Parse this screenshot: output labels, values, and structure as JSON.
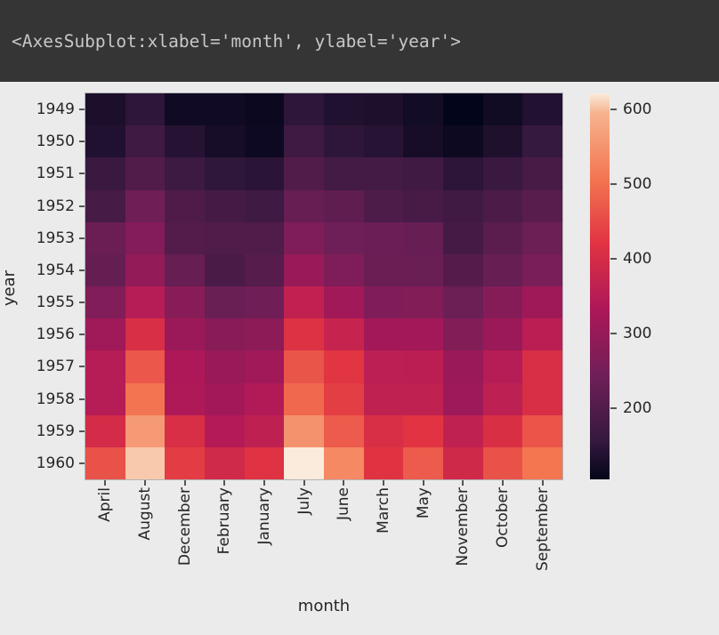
{
  "header": {
    "title": "<AxesSubplot:xlabel='month', ylabel='year'>"
  },
  "chart_data": {
    "type": "heatmap",
    "xlabel": "month",
    "ylabel": "year",
    "columns": [
      "April",
      "August",
      "December",
      "February",
      "January",
      "July",
      "June",
      "March",
      "May",
      "November",
      "October",
      "September"
    ],
    "rows": [
      "1949",
      "1950",
      "1951",
      "1952",
      "1953",
      "1954",
      "1955",
      "1956",
      "1957",
      "1958",
      "1959",
      "1960"
    ],
    "values": [
      [
        129,
        148,
        118,
        118,
        112,
        148,
        135,
        132,
        121,
        104,
        119,
        136
      ],
      [
        135,
        170,
        140,
        126,
        115,
        170,
        149,
        141,
        125,
        114,
        133,
        158
      ],
      [
        163,
        199,
        166,
        150,
        145,
        199,
        178,
        178,
        172,
        146,
        162,
        184
      ],
      [
        181,
        242,
        194,
        180,
        171,
        230,
        218,
        193,
        183,
        172,
        191,
        209
      ],
      [
        235,
        272,
        201,
        196,
        196,
        264,
        243,
        236,
        229,
        180,
        211,
        237
      ],
      [
        227,
        293,
        229,
        188,
        204,
        302,
        264,
        235,
        234,
        203,
        229,
        259
      ],
      [
        269,
        347,
        278,
        233,
        242,
        364,
        315,
        267,
        270,
        237,
        274,
        312
      ],
      [
        313,
        405,
        306,
        277,
        284,
        413,
        374,
        317,
        318,
        271,
        306,
        355
      ],
      [
        348,
        467,
        336,
        301,
        315,
        465,
        422,
        356,
        355,
        305,
        347,
        404
      ],
      [
        348,
        505,
        337,
        318,
        340,
        491,
        435,
        362,
        363,
        310,
        359,
        404
      ],
      [
        396,
        559,
        405,
        342,
        360,
        548,
        472,
        406,
        420,
        362,
        407,
        463
      ],
      [
        461,
        606,
        432,
        391,
        417,
        622,
        535,
        419,
        472,
        390,
        461,
        508
      ]
    ],
    "vmin": 104,
    "vmax": 622,
    "colormap": "rocket",
    "colormap_stops": [
      {
        "t": 0.0,
        "color": "#03051A"
      },
      {
        "t": 0.1,
        "color": "#35193E"
      },
      {
        "t": 0.27,
        "color": "#701F57"
      },
      {
        "t": 0.44,
        "color": "#AD1759"
      },
      {
        "t": 0.61,
        "color": "#E13342"
      },
      {
        "t": 0.78,
        "color": "#F37651"
      },
      {
        "t": 0.95,
        "color": "#F6B48F"
      },
      {
        "t": 1.0,
        "color": "#FAEBDD"
      }
    ],
    "colorbar_ticks": [
      "600",
      "500",
      "400",
      "300",
      "200"
    ],
    "grid": false,
    "legend_position": "right-colorbar",
    "style_colors": {
      "page_background": "#EBEBEB",
      "header_background": "#353535",
      "header_text": "#C7C7C7",
      "tick_color": "#555555",
      "label_color": "#262626"
    }
  }
}
